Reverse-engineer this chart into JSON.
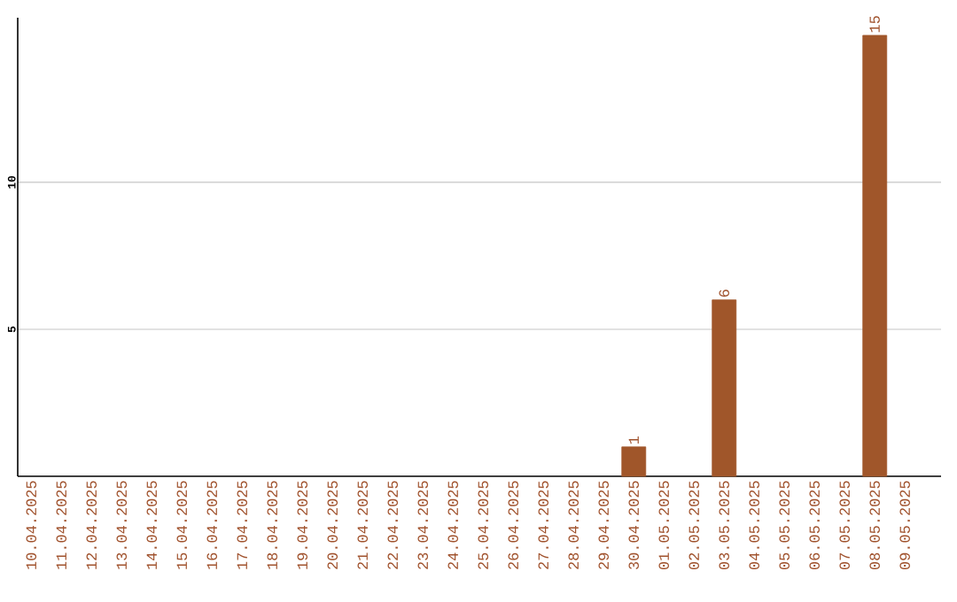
{
  "chart_data": {
    "type": "bar",
    "categories": [
      "10.04.2025",
      "11.04.2025",
      "12.04.2025",
      "13.04.2025",
      "14.04.2025",
      "15.04.2025",
      "16.04.2025",
      "17.04.2025",
      "18.04.2025",
      "19.04.2025",
      "20.04.2025",
      "21.04.2025",
      "22.04.2025",
      "23.04.2025",
      "24.04.2025",
      "25.04.2025",
      "26.04.2025",
      "27.04.2025",
      "28.04.2025",
      "29.04.2025",
      "30.04.2025",
      "01.05.2025",
      "02.05.2025",
      "03.05.2025",
      "04.05.2025",
      "05.05.2025",
      "06.05.2025",
      "07.05.2025",
      "08.05.2025",
      "09.05.2025"
    ],
    "values": [
      0,
      0,
      0,
      0,
      0,
      0,
      0,
      0,
      0,
      0,
      0,
      0,
      0,
      0,
      0,
      0,
      0,
      0,
      0,
      0,
      1,
      0,
      0,
      6,
      0,
      0,
      0,
      0,
      15,
      0
    ],
    "value_labels": [
      null,
      null,
      null,
      null,
      null,
      null,
      null,
      null,
      null,
      null,
      null,
      null,
      null,
      null,
      null,
      null,
      null,
      null,
      null,
      null,
      "1",
      null,
      null,
      "6",
      null,
      null,
      null,
      null,
      "15",
      null
    ],
    "color": "#a0562a",
    "ylim": [
      0,
      15.6
    ],
    "yticks": [
      5,
      10
    ],
    "grid": "y"
  }
}
